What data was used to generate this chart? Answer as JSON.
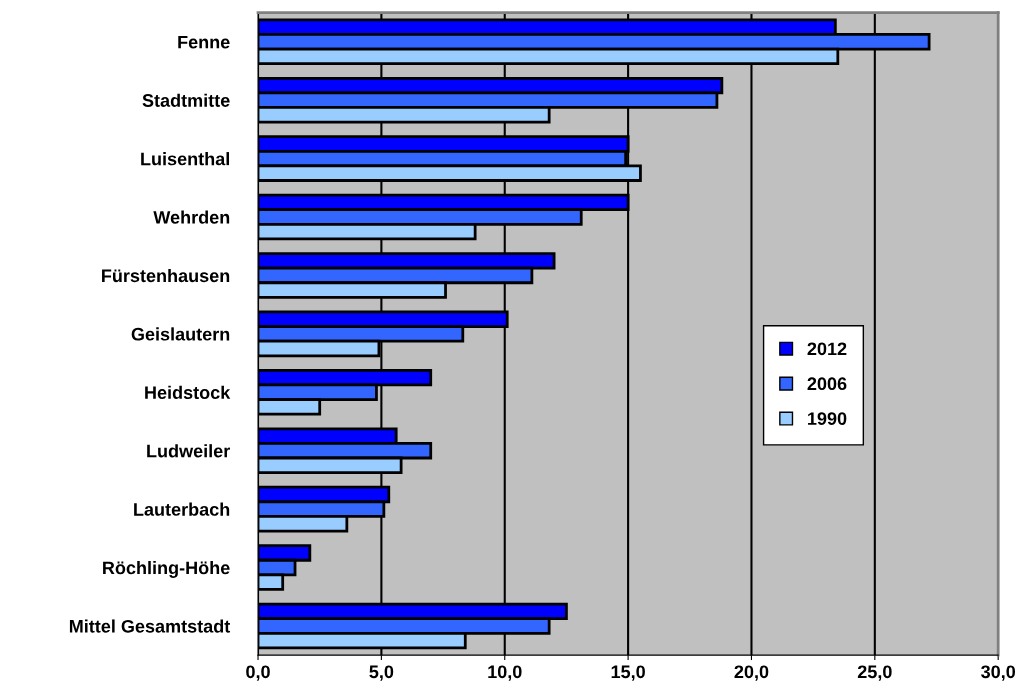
{
  "chart_data": {
    "type": "bar",
    "orientation": "horizontal",
    "categories": [
      "Fenne",
      "Stadtmitte",
      "Luisenthal",
      "Wehrden",
      "Fürstenhausen",
      "Geislautern",
      "Heidstock",
      "Ludweiler",
      "Lauterbach",
      "Röchling-Höhe",
      "Mittel Gesamtstadt"
    ],
    "series": [
      {
        "name": "2012",
        "color": "#0000ff",
        "values": [
          23.4,
          18.8,
          15.0,
          15.0,
          12.0,
          10.1,
          7.0,
          5.6,
          5.3,
          2.1,
          12.5
        ]
      },
      {
        "name": "2006",
        "color": "#3366ff",
        "values": [
          27.2,
          18.6,
          14.9,
          13.1,
          11.1,
          8.3,
          4.8,
          7.0,
          5.1,
          1.5,
          11.8
        ]
      },
      {
        "name": "1990",
        "color": "#99ccff",
        "values": [
          23.5,
          11.8,
          15.5,
          8.8,
          7.6,
          4.9,
          2.5,
          5.8,
          3.6,
          1.0,
          8.4
        ]
      }
    ],
    "xlim": [
      0,
      30
    ],
    "xticks": [
      {
        "value": 0,
        "label": "0,0"
      },
      {
        "value": 5,
        "label": "5,0"
      },
      {
        "value": 10,
        "label": "10,0"
      },
      {
        "value": 15,
        "label": "15,0"
      },
      {
        "value": 20,
        "label": "20,0"
      },
      {
        "value": 25,
        "label": "25,0"
      },
      {
        "value": 30,
        "label": "30,0"
      }
    ],
    "grid": "x",
    "legend": "right"
  }
}
